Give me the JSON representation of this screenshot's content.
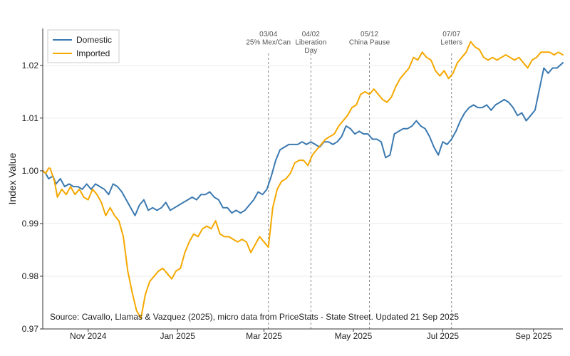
{
  "chart_data": {
    "type": "line",
    "ylabel": "Index Value",
    "xlabel": "",
    "ylim": [
      0.97,
      1.027
    ],
    "xlim": [
      "2024-10-01",
      "2025-09-21"
    ],
    "yticks": [
      {
        "value": 0.97,
        "label": "0.97"
      },
      {
        "value": 0.98,
        "label": "0.98"
      },
      {
        "value": 0.99,
        "label": "0.99"
      },
      {
        "value": 1.0,
        "label": "1.00"
      },
      {
        "value": 1.01,
        "label": "1.01"
      },
      {
        "value": 1.02,
        "label": "1.02"
      }
    ],
    "xticks": [
      {
        "date": "2024-11-01",
        "label": "Nov 2024"
      },
      {
        "date": "2025-01-01",
        "label": "Jan 2025"
      },
      {
        "date": "2025-03-01",
        "label": "Mar 2025"
      },
      {
        "date": "2025-05-01",
        "label": "May 2025"
      },
      {
        "date": "2025-07-01",
        "label": "Jul 2025"
      },
      {
        "date": "2025-09-01",
        "label": "Sep 2025"
      }
    ],
    "events": [
      {
        "date": "2025-03-04",
        "lines": [
          "03/04",
          "25% Mex/Can"
        ]
      },
      {
        "date": "2025-04-02",
        "lines": [
          "04/02",
          "Liberation",
          "Day"
        ]
      },
      {
        "date": "2025-05-12",
        "lines": [
          "05/12",
          "China Pause"
        ]
      },
      {
        "date": "2025-07-07",
        "lines": [
          "07/07",
          "Letters"
        ]
      }
    ],
    "legend": {
      "position": "top-left"
    },
    "series": [
      {
        "name": "Domestic",
        "color": "#3b79b0",
        "points": [
          [
            "2024-10-01",
            1.0
          ],
          [
            "2024-10-03",
            0.9995
          ],
          [
            "2024-10-05",
            0.9985
          ],
          [
            "2024-10-08",
            0.999
          ],
          [
            "2024-10-10",
            0.9975
          ],
          [
            "2024-10-13",
            0.9985
          ],
          [
            "2024-10-16",
            0.997
          ],
          [
            "2024-10-19",
            0.9975
          ],
          [
            "2024-10-22",
            0.997
          ],
          [
            "2024-10-25",
            0.997
          ],
          [
            "2024-10-28",
            0.9965
          ],
          [
            "2024-10-31",
            0.9975
          ],
          [
            "2024-11-03",
            0.9965
          ],
          [
            "2024-11-06",
            0.9975
          ],
          [
            "2024-11-09",
            0.997
          ],
          [
            "2024-11-12",
            0.9965
          ],
          [
            "2024-11-15",
            0.9955
          ],
          [
            "2024-11-18",
            0.9975
          ],
          [
            "2024-11-21",
            0.997
          ],
          [
            "2024-11-24",
            0.996
          ],
          [
            "2024-11-27",
            0.9945
          ],
          [
            "2024-11-30",
            0.993
          ],
          [
            "2024-12-03",
            0.9915
          ],
          [
            "2024-12-06",
            0.9935
          ],
          [
            "2024-12-09",
            0.9945
          ],
          [
            "2024-12-12",
            0.9925
          ],
          [
            "2024-12-15",
            0.993
          ],
          [
            "2024-12-18",
            0.9925
          ],
          [
            "2024-12-21",
            0.993
          ],
          [
            "2024-12-24",
            0.994
          ],
          [
            "2024-12-27",
            0.9925
          ],
          [
            "2024-12-30",
            0.993
          ],
          [
            "2025-01-02",
            0.9935
          ],
          [
            "2025-01-05",
            0.994
          ],
          [
            "2025-01-08",
            0.9945
          ],
          [
            "2025-01-11",
            0.995
          ],
          [
            "2025-01-14",
            0.9945
          ],
          [
            "2025-01-17",
            0.9955
          ],
          [
            "2025-01-20",
            0.9955
          ],
          [
            "2025-01-23",
            0.996
          ],
          [
            "2025-01-26",
            0.995
          ],
          [
            "2025-01-29",
            0.9945
          ],
          [
            "2025-02-01",
            0.993
          ],
          [
            "2025-02-04",
            0.993
          ],
          [
            "2025-02-07",
            0.992
          ],
          [
            "2025-02-10",
            0.9925
          ],
          [
            "2025-02-13",
            0.992
          ],
          [
            "2025-02-16",
            0.9925
          ],
          [
            "2025-02-19",
            0.9935
          ],
          [
            "2025-02-22",
            0.9945
          ],
          [
            "2025-02-25",
            0.996
          ],
          [
            "2025-02-28",
            0.9955
          ],
          [
            "2025-03-03",
            0.9965
          ],
          [
            "2025-03-06",
            0.999
          ],
          [
            "2025-03-09",
            1.002
          ],
          [
            "2025-03-12",
            1.004
          ],
          [
            "2025-03-15",
            1.0045
          ],
          [
            "2025-03-18",
            1.005
          ],
          [
            "2025-03-21",
            1.005
          ],
          [
            "2025-03-24",
            1.005
          ],
          [
            "2025-03-27",
            1.0055
          ],
          [
            "2025-03-30",
            1.005
          ],
          [
            "2025-04-02",
            1.0055
          ],
          [
            "2025-04-05",
            1.005
          ],
          [
            "2025-04-08",
            1.0045
          ],
          [
            "2025-04-11",
            1.0055
          ],
          [
            "2025-04-14",
            1.0055
          ],
          [
            "2025-04-17",
            1.005
          ],
          [
            "2025-04-20",
            1.0055
          ],
          [
            "2025-04-23",
            1.0065
          ],
          [
            "2025-04-26",
            1.0085
          ],
          [
            "2025-04-29",
            1.008
          ],
          [
            "2025-05-02",
            1.007
          ],
          [
            "2025-05-05",
            1.0075
          ],
          [
            "2025-05-08",
            1.007
          ],
          [
            "2025-05-11",
            1.007
          ],
          [
            "2025-05-14",
            1.006
          ],
          [
            "2025-05-17",
            1.006
          ],
          [
            "2025-05-20",
            1.0055
          ],
          [
            "2025-05-23",
            1.0025
          ],
          [
            "2025-05-26",
            1.003
          ],
          [
            "2025-05-29",
            1.007
          ],
          [
            "2025-06-01",
            1.0075
          ],
          [
            "2025-06-04",
            1.008
          ],
          [
            "2025-06-07",
            1.008
          ],
          [
            "2025-06-10",
            1.0085
          ],
          [
            "2025-06-13",
            1.0095
          ],
          [
            "2025-06-16",
            1.0085
          ],
          [
            "2025-06-19",
            1.008
          ],
          [
            "2025-06-22",
            1.0065
          ],
          [
            "2025-06-25",
            1.0045
          ],
          [
            "2025-06-28",
            1.003
          ],
          [
            "2025-07-01",
            1.0055
          ],
          [
            "2025-07-04",
            1.005
          ],
          [
            "2025-07-07",
            1.006
          ],
          [
            "2025-07-10",
            1.0075
          ],
          [
            "2025-07-13",
            1.0095
          ],
          [
            "2025-07-16",
            1.011
          ],
          [
            "2025-07-19",
            1.012
          ],
          [
            "2025-07-22",
            1.0125
          ],
          [
            "2025-07-25",
            1.012
          ],
          [
            "2025-07-28",
            1.012
          ],
          [
            "2025-07-31",
            1.0125
          ],
          [
            "2025-08-03",
            1.0115
          ],
          [
            "2025-08-06",
            1.0125
          ],
          [
            "2025-08-09",
            1.013
          ],
          [
            "2025-08-12",
            1.0135
          ],
          [
            "2025-08-15",
            1.013
          ],
          [
            "2025-08-18",
            1.012
          ],
          [
            "2025-08-21",
            1.0105
          ],
          [
            "2025-08-24",
            1.011
          ],
          [
            "2025-08-27",
            1.0095
          ],
          [
            "2025-08-30",
            1.0105
          ],
          [
            "2025-09-02",
            1.0115
          ],
          [
            "2025-09-05",
            1.0155
          ],
          [
            "2025-09-08",
            1.0195
          ],
          [
            "2025-09-11",
            1.0185
          ],
          [
            "2025-09-14",
            1.0195
          ],
          [
            "2025-09-17",
            1.0195
          ],
          [
            "2025-09-21",
            1.0205
          ]
        ]
      },
      {
        "name": "Imported",
        "color": "#f5a800",
        "points": [
          [
            "2024-10-01",
            1.0
          ],
          [
            "2024-10-03",
            0.9995
          ],
          [
            "2024-10-05",
            1.0005
          ],
          [
            "2024-10-06",
            1.0005
          ],
          [
            "2024-10-09",
            0.998
          ],
          [
            "2024-10-11",
            0.995
          ],
          [
            "2024-10-14",
            0.9965
          ],
          [
            "2024-10-17",
            0.9955
          ],
          [
            "2024-10-20",
            0.997
          ],
          [
            "2024-10-23",
            0.9955
          ],
          [
            "2024-10-26",
            0.9965
          ],
          [
            "2024-10-29",
            0.995
          ],
          [
            "2024-11-01",
            0.9945
          ],
          [
            "2024-11-04",
            0.9965
          ],
          [
            "2024-11-07",
            0.9955
          ],
          [
            "2024-11-10",
            0.994
          ],
          [
            "2024-11-13",
            0.9915
          ],
          [
            "2024-11-16",
            0.993
          ],
          [
            "2024-11-19",
            0.9915
          ],
          [
            "2024-11-22",
            0.9905
          ],
          [
            "2024-11-25",
            0.9875
          ],
          [
            "2024-11-28",
            0.981
          ],
          [
            "2024-12-01",
            0.977
          ],
          [
            "2024-12-04",
            0.9735
          ],
          [
            "2024-12-07",
            0.972
          ],
          [
            "2024-12-10",
            0.9765
          ],
          [
            "2024-12-13",
            0.979
          ],
          [
            "2024-12-16",
            0.98
          ],
          [
            "2024-12-19",
            0.981
          ],
          [
            "2024-12-22",
            0.9815
          ],
          [
            "2024-12-25",
            0.9805
          ],
          [
            "2024-12-28",
            0.9795
          ],
          [
            "2024-12-31",
            0.981
          ],
          [
            "2025-01-03",
            0.9815
          ],
          [
            "2025-01-06",
            0.9845
          ],
          [
            "2025-01-09",
            0.9865
          ],
          [
            "2025-01-12",
            0.988
          ],
          [
            "2025-01-15",
            0.9875
          ],
          [
            "2025-01-18",
            0.989
          ],
          [
            "2025-01-21",
            0.9895
          ],
          [
            "2025-01-24",
            0.989
          ],
          [
            "2025-01-27",
            0.9905
          ],
          [
            "2025-01-30",
            0.988
          ],
          [
            "2025-02-02",
            0.9875
          ],
          [
            "2025-02-05",
            0.9875
          ],
          [
            "2025-02-08",
            0.987
          ],
          [
            "2025-02-11",
            0.9865
          ],
          [
            "2025-02-14",
            0.987
          ],
          [
            "2025-02-17",
            0.9865
          ],
          [
            "2025-02-20",
            0.9845
          ],
          [
            "2025-02-23",
            0.986
          ],
          [
            "2025-02-26",
            0.9875
          ],
          [
            "2025-03-01",
            0.9865
          ],
          [
            "2025-03-04",
            0.9855
          ],
          [
            "2025-03-07",
            0.993
          ],
          [
            "2025-03-10",
            0.9965
          ],
          [
            "2025-03-13",
            0.998
          ],
          [
            "2025-03-16",
            0.9985
          ],
          [
            "2025-03-19",
            0.9995
          ],
          [
            "2025-03-22",
            1.0015
          ],
          [
            "2025-03-25",
            1.002
          ],
          [
            "2025-03-28",
            1.002
          ],
          [
            "2025-03-31",
            1.001
          ],
          [
            "2025-04-03",
            1.003
          ],
          [
            "2025-04-06",
            1.004
          ],
          [
            "2025-04-09",
            1.005
          ],
          [
            "2025-04-12",
            1.006
          ],
          [
            "2025-04-15",
            1.0065
          ],
          [
            "2025-04-18",
            1.007
          ],
          [
            "2025-04-21",
            1.0085
          ],
          [
            "2025-04-24",
            1.0095
          ],
          [
            "2025-04-27",
            1.0105
          ],
          [
            "2025-04-30",
            1.012
          ],
          [
            "2025-05-03",
            1.0125
          ],
          [
            "2025-05-06",
            1.0145
          ],
          [
            "2025-05-09",
            1.015
          ],
          [
            "2025-05-12",
            1.0145
          ],
          [
            "2025-05-15",
            1.0155
          ],
          [
            "2025-05-18",
            1.0145
          ],
          [
            "2025-05-21",
            1.0135
          ],
          [
            "2025-05-24",
            1.013
          ],
          [
            "2025-05-27",
            1.014
          ],
          [
            "2025-05-30",
            1.016
          ],
          [
            "2025-06-02",
            1.0175
          ],
          [
            "2025-06-05",
            1.0185
          ],
          [
            "2025-06-08",
            1.0195
          ],
          [
            "2025-06-11",
            1.0215
          ],
          [
            "2025-06-14",
            1.021
          ],
          [
            "2025-06-17",
            1.0225
          ],
          [
            "2025-06-20",
            1.0215
          ],
          [
            "2025-06-23",
            1.021
          ],
          [
            "2025-06-26",
            1.019
          ],
          [
            "2025-06-29",
            1.018
          ],
          [
            "2025-07-02",
            1.019
          ],
          [
            "2025-07-05",
            1.0175
          ],
          [
            "2025-07-08",
            1.0185
          ],
          [
            "2025-07-11",
            1.0205
          ],
          [
            "2025-07-14",
            1.0215
          ],
          [
            "2025-07-17",
            1.0225
          ],
          [
            "2025-07-20",
            1.0245
          ],
          [
            "2025-07-23",
            1.0235
          ],
          [
            "2025-07-26",
            1.023
          ],
          [
            "2025-07-29",
            1.0215
          ],
          [
            "2025-08-01",
            1.021
          ],
          [
            "2025-08-04",
            1.0215
          ],
          [
            "2025-08-07",
            1.021
          ],
          [
            "2025-08-10",
            1.0215
          ],
          [
            "2025-08-13",
            1.022
          ],
          [
            "2025-08-16",
            1.0215
          ],
          [
            "2025-08-19",
            1.021
          ],
          [
            "2025-08-22",
            1.0215
          ],
          [
            "2025-08-25",
            1.0205
          ],
          [
            "2025-08-28",
            1.0195
          ],
          [
            "2025-08-31",
            1.021
          ],
          [
            "2025-09-03",
            1.0215
          ],
          [
            "2025-09-06",
            1.0225
          ],
          [
            "2025-09-09",
            1.0225
          ],
          [
            "2025-09-12",
            1.0225
          ],
          [
            "2025-09-15",
            1.022
          ],
          [
            "2025-09-18",
            1.0225
          ],
          [
            "2025-09-21",
            1.022
          ]
        ]
      }
    ],
    "annotation": "Source: Cavallo, Llamas & Vazquez (2025), micro data from PriceStats - State Street. Updated 21 Sep 2025"
  }
}
